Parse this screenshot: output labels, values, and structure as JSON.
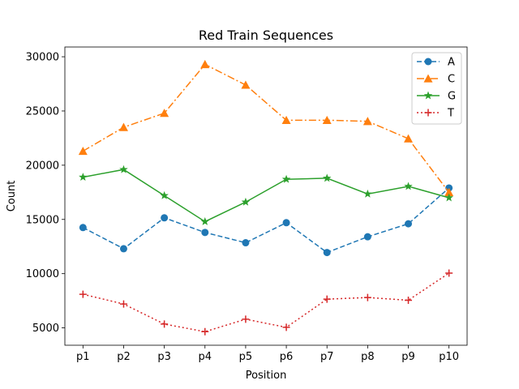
{
  "chart_data": {
    "type": "line",
    "title": "Red Train Sequences",
    "xlabel": "Position",
    "ylabel": "Count",
    "categories": [
      "p1",
      "p2",
      "p3",
      "p4",
      "p5",
      "p6",
      "p7",
      "p8",
      "p9",
      "p10"
    ],
    "ylim": [
      3400,
      30900
    ],
    "yticks": [
      5000,
      10000,
      15000,
      20000,
      25000,
      30000
    ],
    "grid": false,
    "legend_position": "top-right",
    "series": [
      {
        "name": "A",
        "color": "#1f77b4",
        "linestyle": "dashed",
        "marker": "circle",
        "values": [
          14250,
          12300,
          15150,
          13800,
          12850,
          14700,
          11950,
          13400,
          14600,
          17900
        ]
      },
      {
        "name": "C",
        "color": "#ff7f0e",
        "linestyle": "dashdot",
        "marker": "triangle",
        "values": [
          21300,
          23500,
          24800,
          29300,
          27400,
          24150,
          24150,
          24050,
          22450,
          17500
        ]
      },
      {
        "name": "G",
        "color": "#2ca02c",
        "linestyle": "solid",
        "marker": "star",
        "values": [
          18900,
          19600,
          17200,
          14800,
          16600,
          18700,
          18800,
          17350,
          18050,
          17000
        ]
      },
      {
        "name": "T",
        "color": "#d62728",
        "linestyle": "dotted",
        "marker": "plus",
        "values": [
          8100,
          7200,
          5350,
          4650,
          5800,
          5050,
          7650,
          7800,
          7550,
          10050
        ]
      }
    ]
  }
}
